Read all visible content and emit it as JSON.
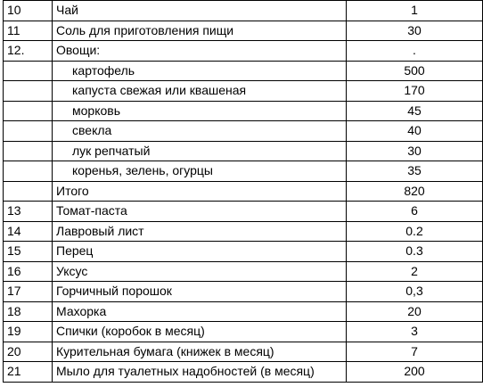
{
  "rows": [
    {
      "num": "10",
      "name": "Чай",
      "qty": "1",
      "sub": false
    },
    {
      "num": "11",
      "name": "Соль для приготовления пищи",
      "qty": "30",
      "sub": false
    },
    {
      "num": "12.",
      "name": "Овощи:",
      "qty": ".",
      "sub": false
    },
    {
      "num": "",
      "name": "картофель",
      "qty": "500",
      "sub": true
    },
    {
      "num": "",
      "name": "капуста свежая или квашеная",
      "qty": "170",
      "sub": true
    },
    {
      "num": "",
      "name": "морковь",
      "qty": "45",
      "sub": true
    },
    {
      "num": "",
      "name": "свекла",
      "qty": "40",
      "sub": true
    },
    {
      "num": "",
      "name": "лук репчатый",
      "qty": "30",
      "sub": true
    },
    {
      "num": "",
      "name": "коренья, зелень, огурцы",
      "qty": "35",
      "sub": true
    },
    {
      "num": "",
      "name": "Итого",
      "qty": "820",
      "sub": false
    },
    {
      "num": "13",
      "name": "Томат-паста",
      "qty": "6",
      "sub": false
    },
    {
      "num": "14",
      "name": "Лавровый лист",
      "qty": "0.2",
      "sub": false
    },
    {
      "num": "15",
      "name": "Перец",
      "qty": "0.3",
      "sub": false
    },
    {
      "num": "16",
      "name": "Уксус",
      "qty": "2",
      "sub": false
    },
    {
      "num": "17",
      "name": "Горчичный порошок",
      "qty": "0,3",
      "sub": false
    },
    {
      "num": "18",
      "name": "Махорка",
      "qty": "20",
      "sub": false
    },
    {
      "num": "19",
      "name": "Спички (коробок в месяц)",
      "qty": "3",
      "sub": false
    },
    {
      "num": "20",
      "name": "Курительная бумага (книжек в месяц)",
      "qty": "7",
      "sub": false
    },
    {
      "num": "21",
      "name": "Мыло для туалетных надобностей (в месяц)",
      "qty": "200",
      "sub": false
    }
  ]
}
